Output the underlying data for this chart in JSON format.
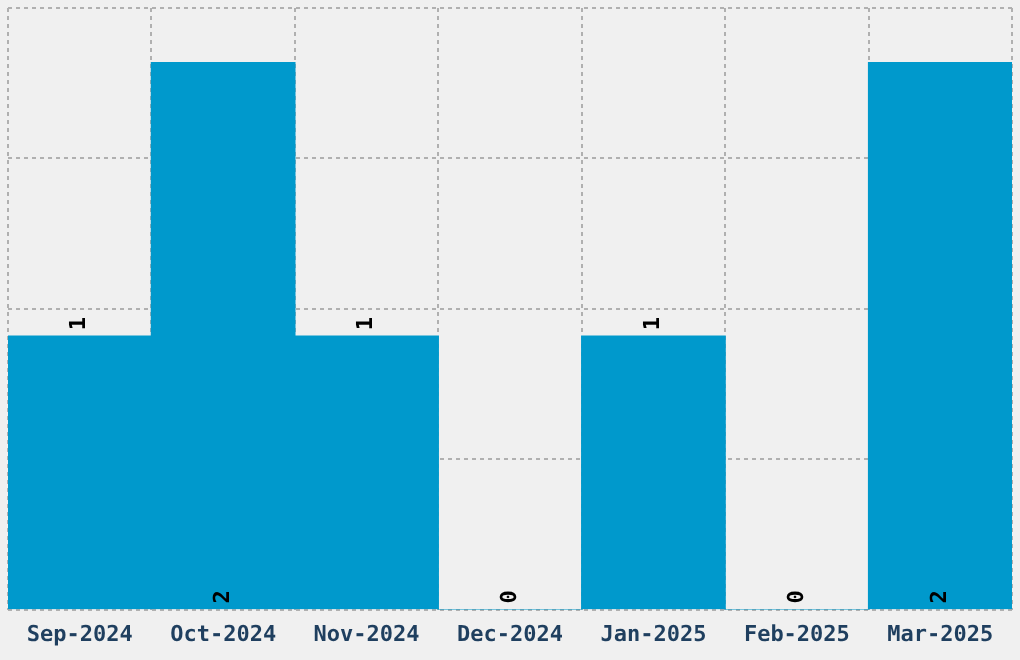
{
  "chart_data": {
    "type": "bar",
    "categories": [
      "Sep-2024",
      "Oct-2024",
      "Nov-2024",
      "Dec-2024",
      "Jan-2025",
      "Feb-2025",
      "Mar-2025"
    ],
    "values": [
      1,
      2,
      1,
      0,
      1,
      0,
      2
    ],
    "color": "#0099cc",
    "ylim": [
      0,
      2.2
    ],
    "yticks": [
      {
        "value": 0,
        "label": null
      },
      {
        "value": 0.55,
        "label": null
      },
      {
        "value": 1.1,
        "label": null
      },
      {
        "value": 1.65,
        "label": null
      },
      {
        "value": 2.2,
        "label": null
      }
    ],
    "grid": true,
    "tick_labels": "x",
    "data_labels": true
  }
}
